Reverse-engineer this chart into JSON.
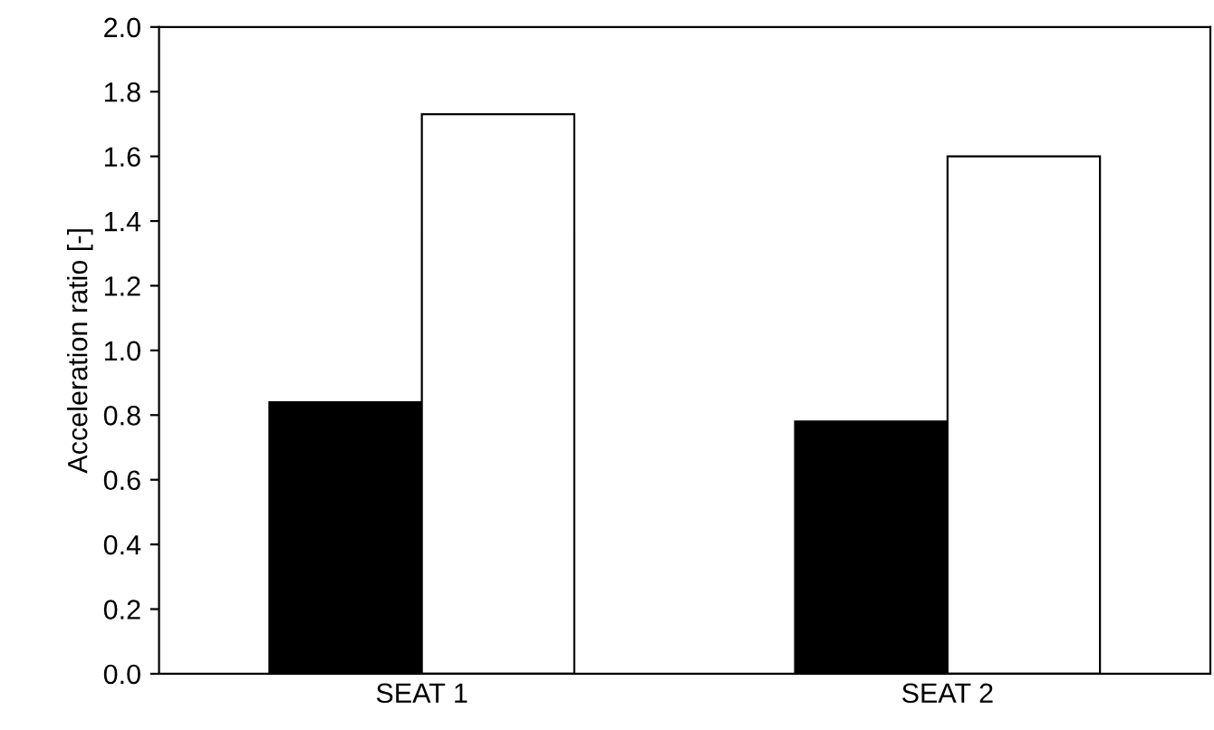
{
  "chart_data": {
    "type": "bar",
    "ylabel": "Acceleration ratio [-]",
    "categories": [
      "SEAT 1",
      "SEAT 2"
    ],
    "series": [
      {
        "color": "#000000",
        "values": [
          0.84,
          0.78
        ]
      },
      {
        "color": "#ffffff",
        "values": [
          1.73,
          1.6
        ]
      }
    ],
    "ylim": [
      0,
      2
    ],
    "yticks": [
      {
        "value": 0,
        "label": "0.0"
      },
      {
        "value": 0.2,
        "label": "0.2"
      },
      {
        "value": 0.4,
        "label": "0.4"
      },
      {
        "value": 0.6,
        "label": "0.6"
      },
      {
        "value": 0.8,
        "label": "0.8"
      },
      {
        "value": 1,
        "label": "1.0"
      },
      {
        "value": 1.2,
        "label": "1.2"
      },
      {
        "value": 1.4,
        "label": "1.4"
      },
      {
        "value": 1.6,
        "label": "1.6"
      },
      {
        "value": 1.8,
        "label": "1.8"
      },
      {
        "value": 2,
        "label": "2.0"
      }
    ],
    "grid": false,
    "legend": false
  }
}
